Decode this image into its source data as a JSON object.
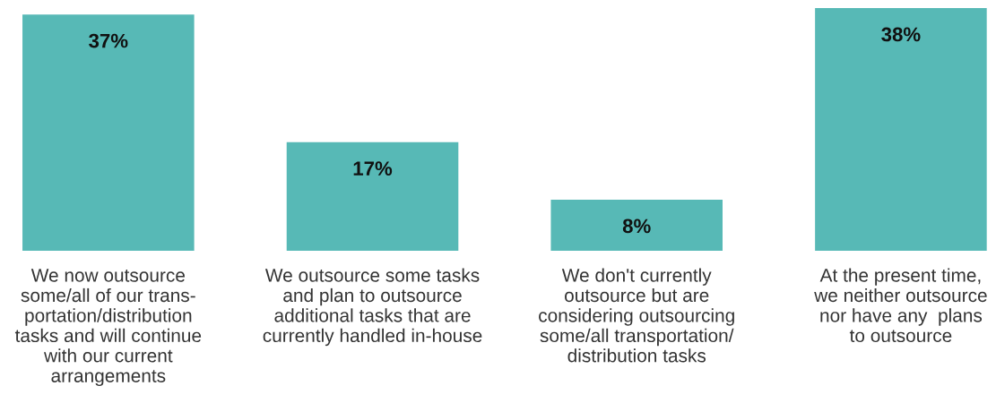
{
  "chart_data": {
    "type": "bar",
    "categories": [
      "We now outsource\nsome/all of our trans-\nportation/distribution\ntasks and will continue\nwith our current\narrangements",
      "We outsource some tasks\nand plan to outsource\nadditional tasks that are\ncurrently handled in-house",
      "We don't currently\noutsource but are\nconsidering outsourcing\nsome/all transportation/\ndistribution tasks",
      "At the present time,\nwe neither outsource\nnor have any  plans\nto outsource"
    ],
    "values": [
      37,
      17,
      8,
      38
    ],
    "value_labels": [
      "37%",
      "17%",
      "8%",
      "38%"
    ],
    "color": "#57b9b6",
    "ylim": [
      0,
      38
    ],
    "tick_labels": "x",
    "grid": false,
    "legend": false
  }
}
